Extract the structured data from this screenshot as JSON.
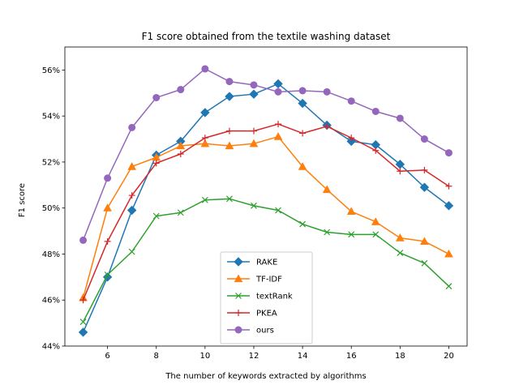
{
  "chart_data": {
    "type": "line",
    "title": "F1 score obtained from the textile washing dataset",
    "xlabel": "The number of keywords extracted by algorithms",
    "ylabel": "F1 score",
    "x": [
      5,
      6,
      7,
      8,
      9,
      10,
      11,
      12,
      13,
      14,
      15,
      16,
      17,
      18,
      19,
      20
    ],
    "xlim": [
      4.25,
      20.75
    ],
    "ylim": [
      44,
      57
    ],
    "xticks": [
      6,
      8,
      10,
      12,
      14,
      16,
      18,
      20
    ],
    "yticks": [
      44,
      46,
      48,
      50,
      52,
      54,
      56
    ],
    "ytick_labels": [
      "44%",
      "46%",
      "48%",
      "50%",
      "52%",
      "54%",
      "56%"
    ],
    "grid": false,
    "legend_position": "lower center",
    "series": [
      {
        "name": "RAKE",
        "color": "#1f77b4",
        "marker": "diamond",
        "values": [
          44.6,
          47.0,
          49.9,
          52.3,
          52.9,
          54.15,
          54.85,
          54.95,
          55.4,
          54.55,
          53.6,
          52.9,
          52.75,
          51.9,
          50.9,
          50.1
        ]
      },
      {
        "name": "TF-IDF",
        "color": "#ff7f0e",
        "marker": "triangle",
        "values": [
          46.1,
          50.0,
          51.8,
          52.2,
          52.7,
          52.8,
          52.7,
          52.8,
          53.1,
          51.8,
          50.8,
          49.85,
          49.4,
          48.7,
          48.55,
          48.0
        ]
      },
      {
        "name": "textRank",
        "color": "#2ca02c",
        "marker": "x",
        "values": [
          45.05,
          47.1,
          48.1,
          49.65,
          49.8,
          50.35,
          50.4,
          50.1,
          49.9,
          49.3,
          48.95,
          48.85,
          48.85,
          48.05,
          47.6,
          46.6
        ]
      },
      {
        "name": "PKEA",
        "color": "#d62728",
        "marker": "plus",
        "values": [
          46.0,
          48.55,
          50.55,
          51.95,
          52.35,
          53.05,
          53.35,
          53.35,
          53.65,
          53.25,
          53.55,
          53.05,
          52.5,
          51.6,
          51.65,
          50.95
        ]
      },
      {
        "name": "ours",
        "color": "#9467bd",
        "marker": "circle",
        "values": [
          48.6,
          51.3,
          53.5,
          54.8,
          55.15,
          56.05,
          55.5,
          55.35,
          55.05,
          55.1,
          55.05,
          54.65,
          54.2,
          53.9,
          53.0,
          52.4
        ]
      }
    ]
  }
}
